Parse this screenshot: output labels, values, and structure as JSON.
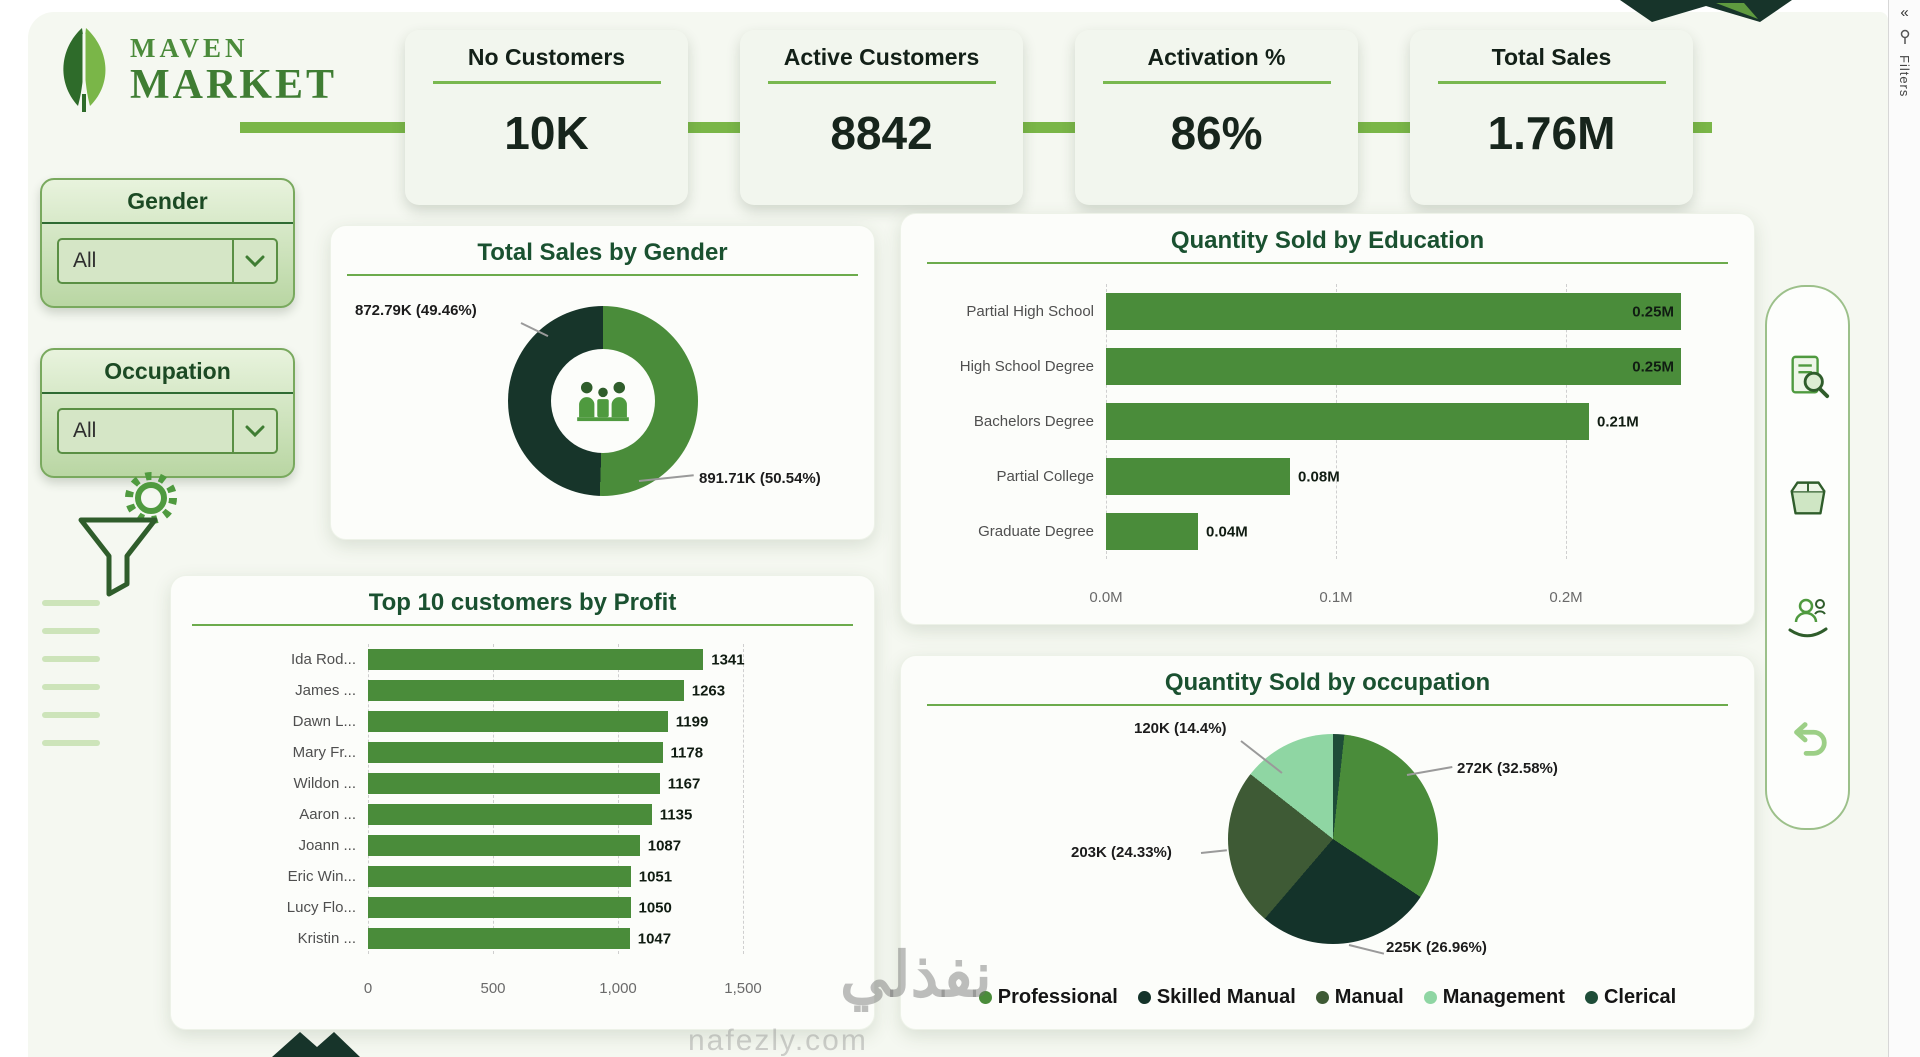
{
  "theme": {
    "green": "#4a8c3a",
    "dark_green": "#14332a",
    "olive_green": "#3e5a35",
    "light_green": "#8fd6a3",
    "accent_line": "#7ab648",
    "title_green": "#1a5130"
  },
  "logo": {
    "word1": "MAVEN",
    "word2": "MARKET"
  },
  "filters_pane": {
    "label": "Filters",
    "collapse_icon": "«"
  },
  "kpis": [
    {
      "label": "No Customers",
      "value": "10K"
    },
    {
      "label": "Active Customers",
      "value": "8842"
    },
    {
      "label": "Activation %",
      "value": "86%"
    },
    {
      "label": "Total Sales",
      "value": "1.76M"
    }
  ],
  "slicers": [
    {
      "label": "Gender",
      "value": "All"
    },
    {
      "label": "Occupation",
      "value": "All"
    }
  ],
  "chart_data": [
    {
      "id": "total-sales-by-gender",
      "type": "pie",
      "variant": "donut",
      "title": "Total Sales by Gender",
      "slices": [
        {
          "label": "891.71K (50.54%)",
          "value": 50.54,
          "color": "#4a8c3a"
        },
        {
          "label": "872.79K (49.46%)",
          "value": 49.46,
          "color": "#17352a"
        }
      ]
    },
    {
      "id": "quantity-sold-by-education",
      "type": "bar",
      "orientation": "horizontal",
      "title": "Quantity Sold by Education",
      "categories": [
        "Partial High School",
        "High School Degree",
        "Bachelors Degree",
        "Partial College",
        "Graduate Degree"
      ],
      "values": [
        0.25,
        0.25,
        0.21,
        0.08,
        0.04
      ],
      "value_labels": [
        "0.25M",
        "0.25M",
        "0.21M",
        "0.08M",
        "0.04M"
      ],
      "value_label_inside": [
        true,
        true,
        false,
        false,
        false
      ],
      "x_max": 0.25,
      "x_ticks": [
        {
          "value": 0,
          "label": "0.0M"
        },
        {
          "value": 0.1,
          "label": "0.1M"
        },
        {
          "value": 0.2,
          "label": "0.2M"
        }
      ],
      "bar_color": "#4a8c3a"
    },
    {
      "id": "top-10-customers-by-profit",
      "type": "bar",
      "orientation": "horizontal",
      "title": "Top 10 customers by Profit",
      "categories": [
        "Ida Rod...",
        "James ...",
        "Dawn L...",
        "Mary Fr...",
        "Wildon ...",
        "Aaron ...",
        "Joann ...",
        "Eric Win...",
        "Lucy Flo...",
        "Kristin ..."
      ],
      "values": [
        1341,
        1263,
        1199,
        1178,
        1167,
        1135,
        1087,
        1051,
        1050,
        1047
      ],
      "value_labels": [
        "1341",
        "1263",
        "1199",
        "1178",
        "1167",
        "1135",
        "1087",
        "1051",
        "1050",
        "1047"
      ],
      "value_label_inside": [
        false,
        false,
        false,
        false,
        false,
        false,
        false,
        false,
        false,
        false
      ],
      "x_max": 1600,
      "x_ticks": [
        {
          "value": 0,
          "label": "0"
        },
        {
          "value": 500,
          "label": "500"
        },
        {
          "value": 1000,
          "label": "1,000"
        },
        {
          "value": 1500,
          "label": "1,500"
        }
      ],
      "bar_color": "#4a8c3a"
    },
    {
      "id": "quantity-sold-by-occupation",
      "type": "pie",
      "title": "Quantity Sold by occupation",
      "slices": [
        {
          "label": "",
          "value": 1.73,
          "color": "#1e4d38",
          "legend": "Clerical"
        },
        {
          "label": "272K (32.58%)",
          "value": 32.58,
          "color": "#4a8c3a",
          "legend": "Professional"
        },
        {
          "label": "225K (26.96%)",
          "value": 26.96,
          "color": "#14332a",
          "legend": "Skilled Manual"
        },
        {
          "label": "203K (24.33%)",
          "value": 24.33,
          "color": "#3e5a35",
          "legend": "Manual"
        },
        {
          "label": "120K (14.4%)",
          "value": 14.4,
          "color": "#8fd6a3",
          "legend": "Management"
        }
      ],
      "legend": [
        {
          "label": "Professional",
          "color": "#4a8c3a"
        },
        {
          "label": "Skilled Manual",
          "color": "#14332a"
        },
        {
          "label": "Manual",
          "color": "#3e5a35"
        },
        {
          "label": "Management",
          "color": "#8fd6a3"
        },
        {
          "label": "Clerical",
          "color": "#1e4d38"
        }
      ]
    }
  ],
  "watermark": {
    "arabic": "نفذلي",
    "latin": "nafezly.com"
  }
}
